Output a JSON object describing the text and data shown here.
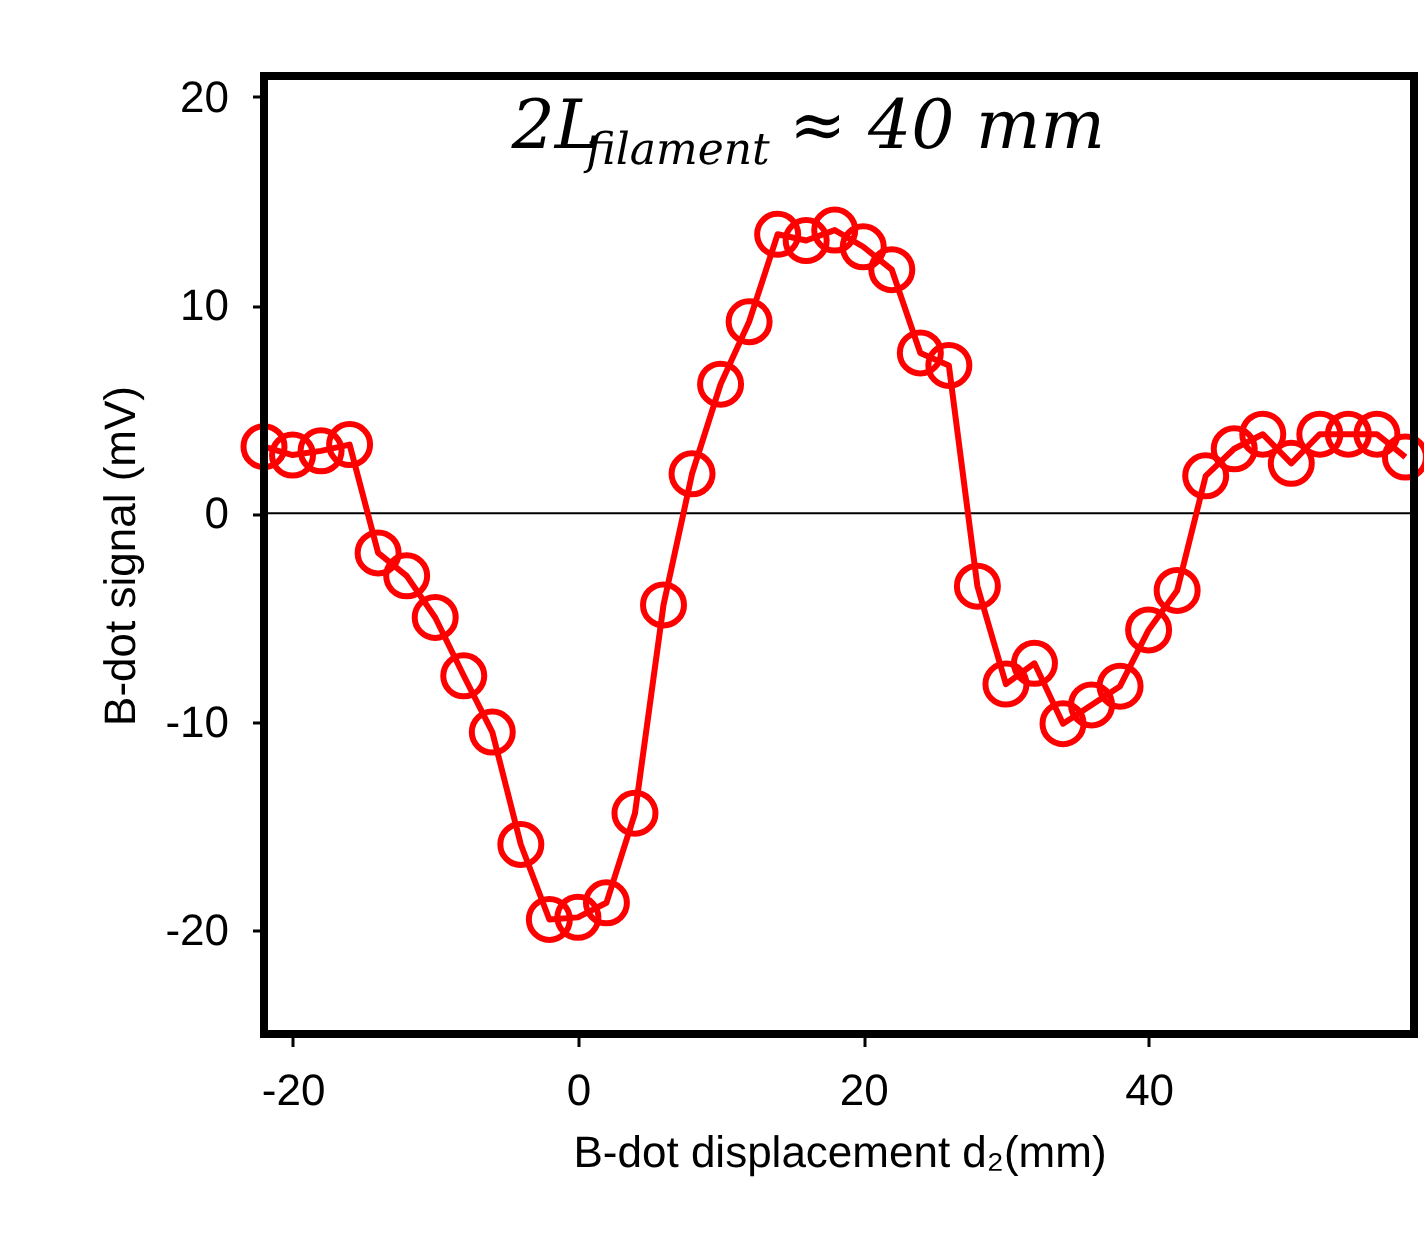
{
  "chart_data": {
    "type": "line",
    "xlabel": "B-dot displacement d₂(mm)",
    "ylabel": "B-dot signal (mV)",
    "x": [
      -22,
      -20,
      -18,
      -16,
      -14,
      -12,
      -10,
      -8,
      -6,
      -4,
      -2,
      0,
      2,
      4,
      6,
      8,
      10,
      12,
      14,
      16,
      18,
      20,
      22,
      24,
      26,
      28,
      30,
      32,
      34,
      36,
      38,
      40,
      42,
      44,
      46,
      48,
      50,
      52,
      54,
      56,
      58
    ],
    "series": [
      {
        "color": "#ff0000",
        "values": [
          3.2,
          2.8,
          3.0,
          3.3,
          -1.9,
          -3.0,
          -5.0,
          -7.8,
          -10.5,
          -15.9,
          -19.5,
          -19.4,
          -18.7,
          -14.4,
          -4.4,
          1.9,
          6.2,
          9.2,
          13.4,
          13.1,
          13.6,
          12.8,
          11.7,
          7.7,
          7.1,
          -3.5,
          -8.2,
          -7.2,
          -10.1,
          -9.2,
          -8.3,
          -5.6,
          -3.7,
          1.8,
          3.1,
          3.8,
          2.4,
          3.8,
          3.8,
          3.8,
          2.7
        ]
      }
    ],
    "xlim": [
      -22,
      58.6
    ],
    "ylim": [
      -25,
      21
    ],
    "xticks": [
      -20,
      0,
      20,
      40
    ],
    "yticks": [
      -20,
      -10,
      0,
      10,
      20
    ],
    "ref_lines": [
      {
        "axis": "y",
        "value": 0,
        "color": "#000000"
      }
    ],
    "annotations": [
      "2L$_{filament}$ ≈ 40 mm"
    ],
    "marker": "circle",
    "grid": false
  }
}
